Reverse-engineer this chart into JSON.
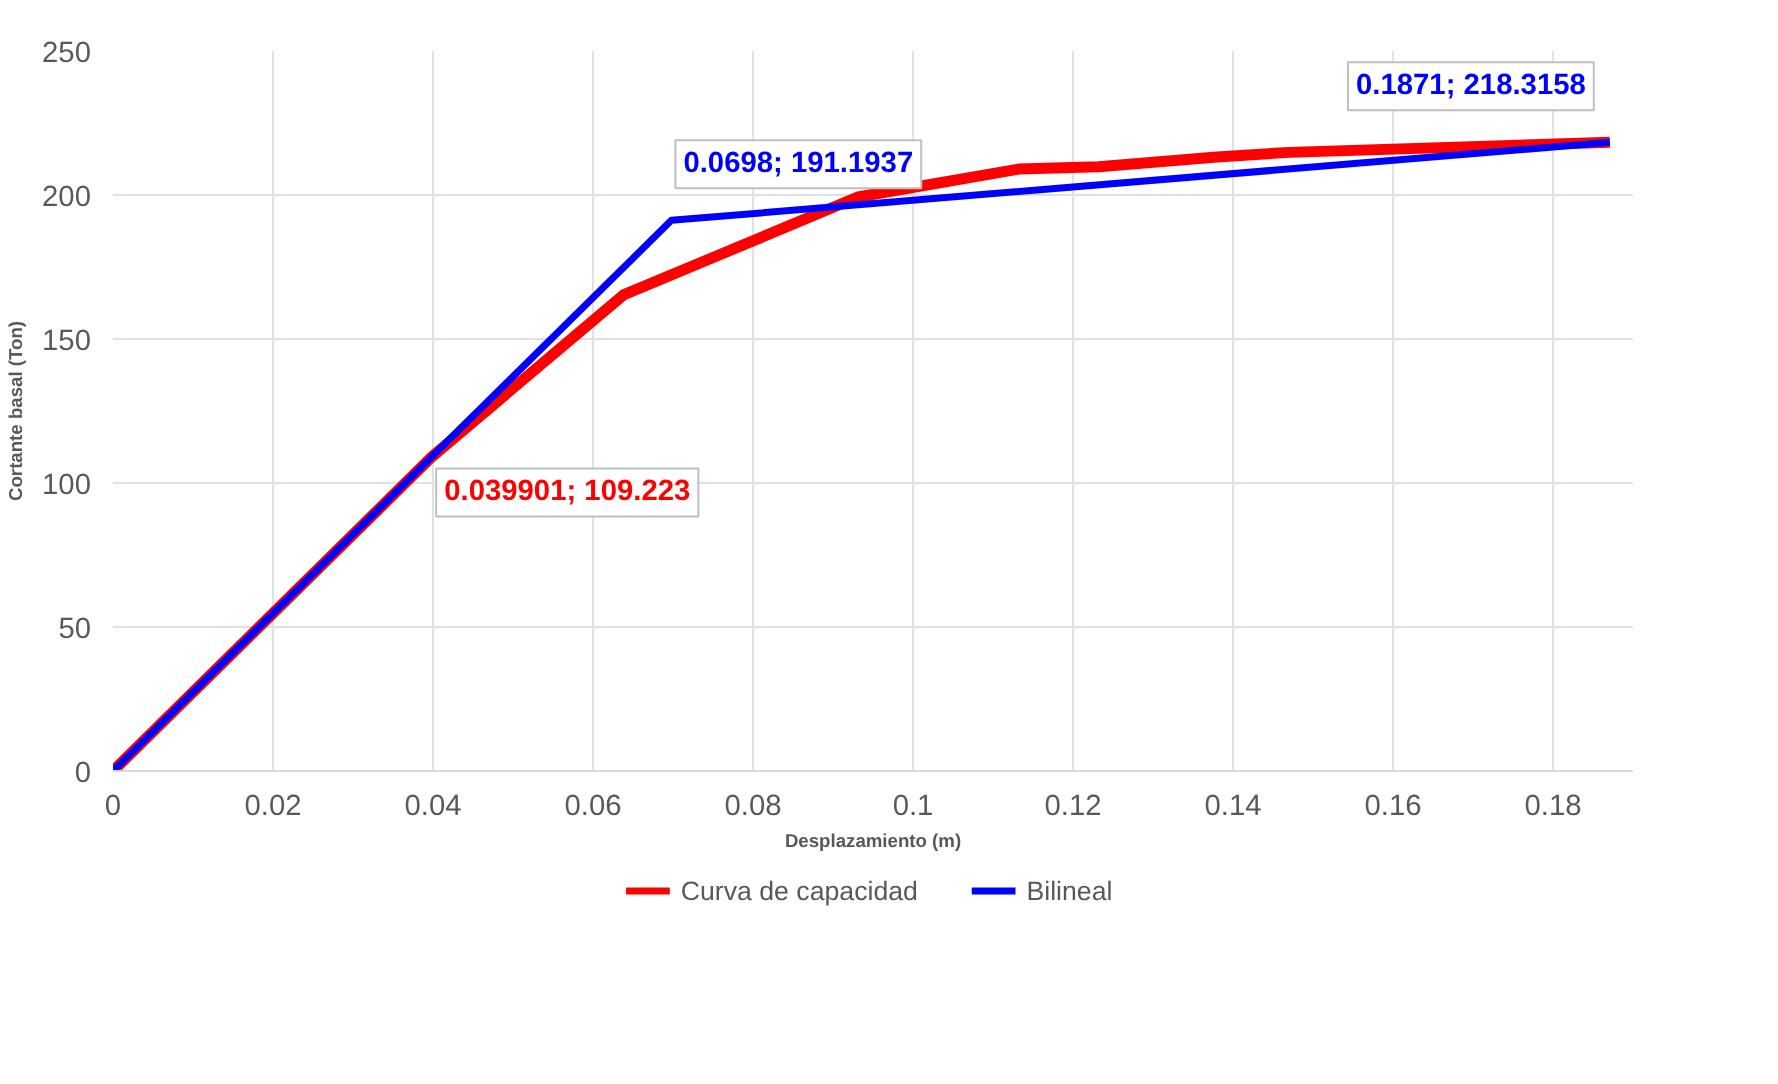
{
  "chart_data": {
    "type": "line",
    "xlabel": "Desplazamiento (m)",
    "ylabel": "Cortante basal (Ton)",
    "xlim": [
      0,
      0.19
    ],
    "ylim": [
      0,
      250
    ],
    "xticks": [
      0,
      0.02,
      0.04,
      0.06,
      0.08,
      0.1,
      0.12,
      0.14,
      0.16,
      0.18
    ],
    "yticks": [
      0,
      50,
      100,
      150,
      200,
      250
    ],
    "grid": true,
    "legend": "bottom",
    "marker": "none",
    "line_style": "solid",
    "series": [
      {
        "name": "Curva de capacidad",
        "color": "#ff0000",
        "x": [
          0,
          0.039901,
          0.0638,
          0.0931,
          0.1132,
          0.1232,
          0.138,
          0.147,
          0.1871
        ],
        "values": [
          0,
          109.223,
          165.3,
          199.3,
          209,
          209.8,
          213.2,
          214.8,
          218.3158
        ]
      },
      {
        "name": "Bilineal",
        "color": "#0000ff",
        "x": [
          0,
          0.0698,
          0.1871
        ],
        "values": [
          0,
          191.1937,
          218.3158
        ]
      }
    ],
    "annotations": [
      {
        "text": "0.039901; 109.223",
        "x": 0.039901,
        "y": 109.223
      },
      {
        "text": "0.0698; 191.1937",
        "x": 0.0698,
        "y": 191.1937
      },
      {
        "text": "0.1871; 218.3158",
        "x": 0.1871,
        "y": 218.3158
      }
    ]
  }
}
